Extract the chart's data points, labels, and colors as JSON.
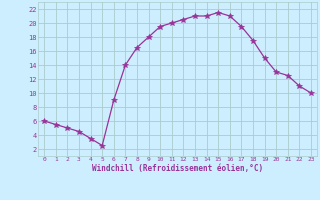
{
  "x": [
    0,
    1,
    2,
    3,
    4,
    5,
    6,
    7,
    8,
    9,
    10,
    11,
    12,
    13,
    14,
    15,
    16,
    17,
    18,
    19,
    20,
    21,
    22,
    23
  ],
  "y": [
    6,
    5.5,
    5,
    4.5,
    3.5,
    2.5,
    9,
    14,
    16.5,
    18,
    19.5,
    20,
    20.5,
    21,
    21,
    21.5,
    21,
    19.5,
    17.5,
    15,
    13,
    12.5,
    11,
    10
  ],
  "line_color": "#993399",
  "marker": "*",
  "marker_size": 4,
  "bg_color": "#cceeff",
  "grid_color": "#aacccc",
  "xlabel": "Windchill (Refroidissement éolien,°C)",
  "xlabel_color": "#993399",
  "tick_color": "#993399",
  "xlim": [
    -0.5,
    23.5
  ],
  "ylim": [
    1,
    23
  ],
  "yticks": [
    2,
    4,
    6,
    8,
    10,
    12,
    14,
    16,
    18,
    20,
    22
  ],
  "xticks": [
    0,
    1,
    2,
    3,
    4,
    5,
    6,
    7,
    8,
    9,
    10,
    11,
    12,
    13,
    14,
    15,
    16,
    17,
    18,
    19,
    20,
    21,
    22,
    23
  ]
}
